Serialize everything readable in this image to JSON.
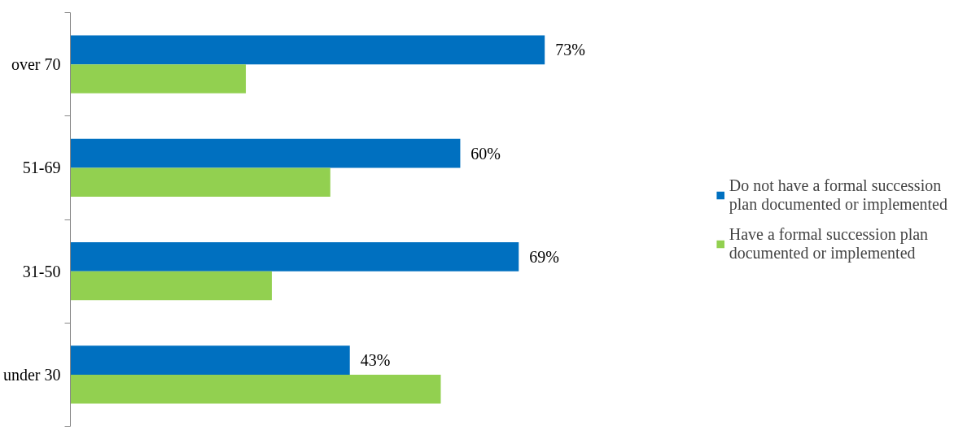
{
  "chart_data": {
    "type": "bar",
    "orientation": "horizontal",
    "tick_labels": "y",
    "categories": [
      "over 70",
      "51-69",
      "31-50",
      "under 30"
    ],
    "series": [
      {
        "name": "Do not have a formal succession plan documented or implemented",
        "color": "#0070c0",
        "values": [
          73,
          60,
          69,
          43
        ],
        "value_labels": [
          "73%",
          "60%",
          "69%",
          "43%"
        ]
      },
      {
        "name": "Have a formal succession plan documented or implemented",
        "color": "#92d050",
        "values": [
          27,
          40,
          31,
          57
        ]
      }
    ],
    "grid": false,
    "legend": "right"
  }
}
